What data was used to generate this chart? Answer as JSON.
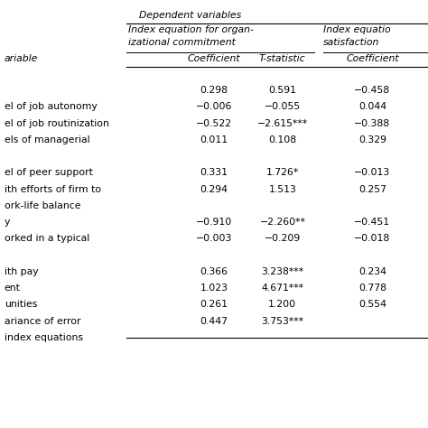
{
  "background": "#ffffff",
  "text_color": "#000000",
  "font_size": 7.8,
  "title": "Dependent variables",
  "header1a": "Index equation for organ-",
  "header1b": "izational commitment",
  "header1c": "Index equatio",
  "header1d": "satisfaction",
  "sub_label": "ariable",
  "sub_col1": "Coefficient",
  "sub_col2": "T-statistic",
  "sub_col3": "Coefficient",
  "rows": [
    {
      "label": "",
      "c1": "0.298",
      "c2": "0.591",
      "c3": "−0.458",
      "extra": 0
    },
    {
      "label": "el of job autonomy",
      "c1": "−0.006",
      "c2": "−0.055",
      "c3": "0.044",
      "extra": 0
    },
    {
      "label": "el of job routinization",
      "c1": "−0.522",
      "c2": "−2.615***",
      "c3": "−0.388",
      "extra": 0
    },
    {
      "label": "els of managerial",
      "c1": "0.011",
      "c2": "0.108",
      "c3": "0.329",
      "extra": 0
    },
    {
      "label": "",
      "c1": "",
      "c2": "",
      "c3": "",
      "extra": 0
    },
    {
      "label": "el of peer support",
      "c1": "0.331",
      "c2": "1.726*",
      "c3": "−0.013",
      "extra": 0
    },
    {
      "label": "ith efforts of firm to",
      "c1": "0.294",
      "c2": "1.513",
      "c3": "0.257",
      "extra": 0
    },
    {
      "label": "ork-life balance",
      "c1": "",
      "c2": "",
      "c3": "",
      "extra": 0
    },
    {
      "label": "y",
      "c1": "−0.910",
      "c2": "−2.260**",
      "c3": "−0.451",
      "extra": 0
    },
    {
      "label": "orked in a typical",
      "c1": "−0.003",
      "c2": "−0.209",
      "c3": "−0.018",
      "extra": 0
    },
    {
      "label": "",
      "c1": "",
      "c2": "",
      "c3": "",
      "extra": 0
    },
    {
      "label": "ith pay",
      "c1": "0.366",
      "c2": "3.238***",
      "c3": "0.234",
      "extra": 0
    },
    {
      "label": "ent",
      "c1": "1.023",
      "c2": "4.671***",
      "c3": "0.778",
      "extra": 0
    },
    {
      "label": "unities",
      "c1": "0.261",
      "c2": "1.200",
      "c3": "0.554",
      "extra": 0
    },
    {
      "label": "ariance of error",
      "c1": "0.447",
      "c2": "3.753***",
      "c3": "",
      "extra": 0
    },
    {
      "label": "index equations",
      "c1": "",
      "c2": "",
      "c3": "",
      "extra": 0
    }
  ]
}
